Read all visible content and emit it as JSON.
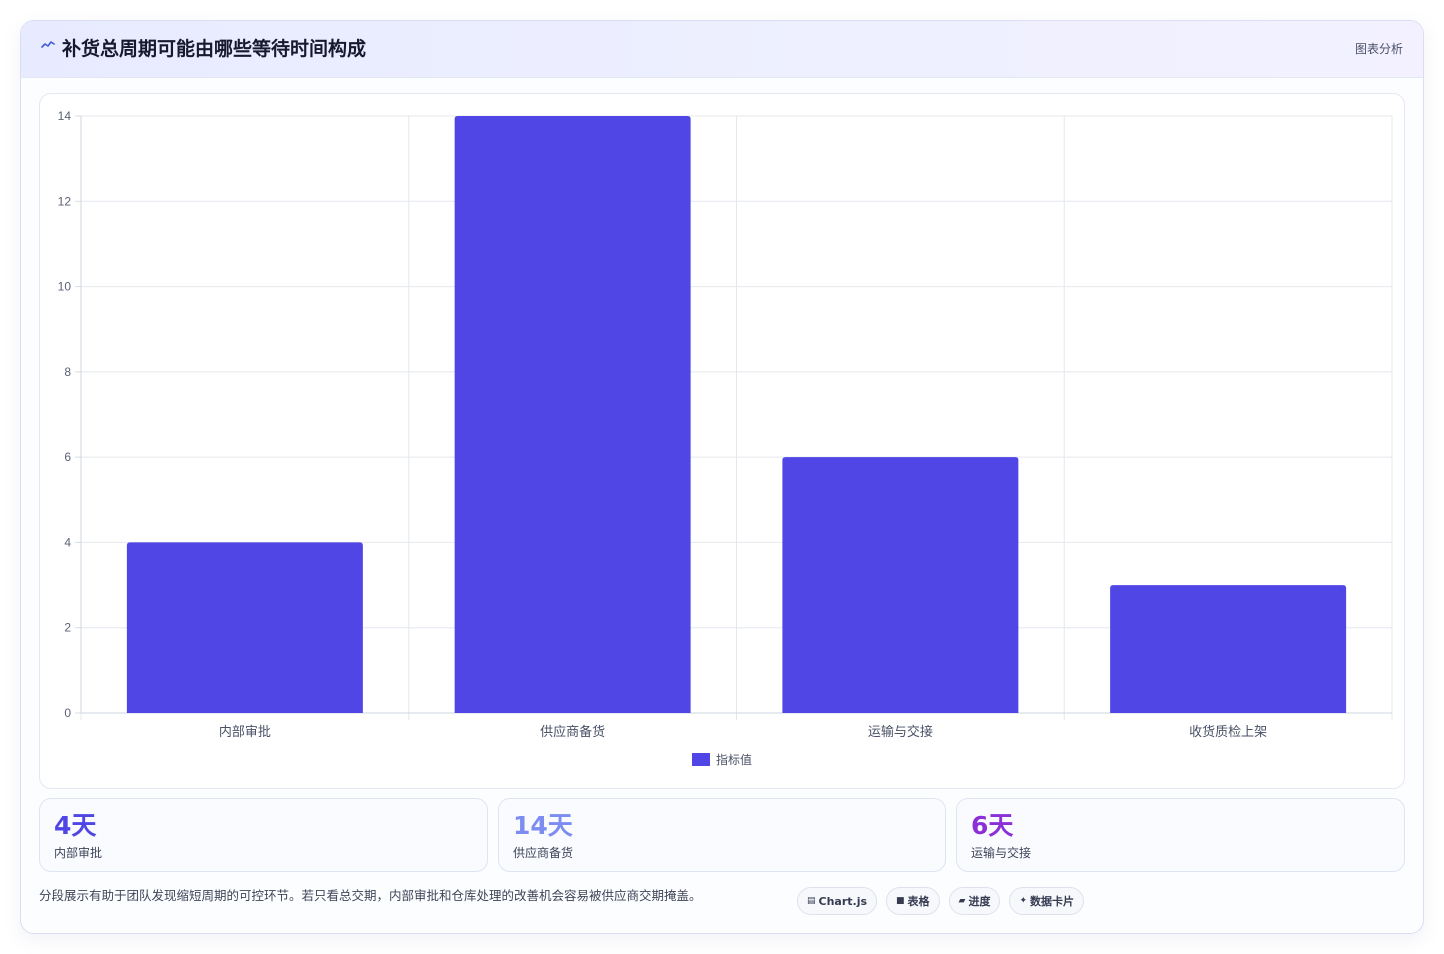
{
  "header": {
    "icon": "trend-line-icon",
    "title": "补货总周期可能由哪些等待时间构成",
    "tag": "图表分析"
  },
  "chart_data": {
    "type": "bar",
    "categories": [
      "内部审批",
      "供应商备货",
      "运输与交接",
      "收货质检上架"
    ],
    "series": [
      {
        "name": "指标值",
        "values": [
          4,
          14,
          6,
          3
        ],
        "color": "#5046e5"
      }
    ],
    "ylim": [
      0,
      14
    ],
    "yticks": [
      0,
      2,
      4,
      6,
      8,
      10,
      12,
      14
    ],
    "grid": true,
    "legend_position": "bottom"
  },
  "stats": [
    {
      "value": "4天",
      "label": "内部审批",
      "color": "#4f46e5"
    },
    {
      "value": "14天",
      "label": "供应商备货",
      "color": "#7c8cf0"
    },
    {
      "value": "6天",
      "label": "运输与交接",
      "color": "#8b2fd6"
    }
  ],
  "footer": {
    "note": "分段展示有助于团队发现缩短周期的可控环节。若只看总交期，内部审批和仓库处理的改善机会容易被供应商交期掩盖。",
    "pills": [
      {
        "icon": "chart-icon",
        "glyph": "▤",
        "label": "Chart.js"
      },
      {
        "icon": "table-icon",
        "glyph": "■",
        "label": "表格"
      },
      {
        "icon": "progress-icon",
        "glyph": "▰",
        "label": "进度"
      },
      {
        "icon": "sparkle-icon",
        "glyph": "✦",
        "label": "数据卡片"
      }
    ]
  }
}
